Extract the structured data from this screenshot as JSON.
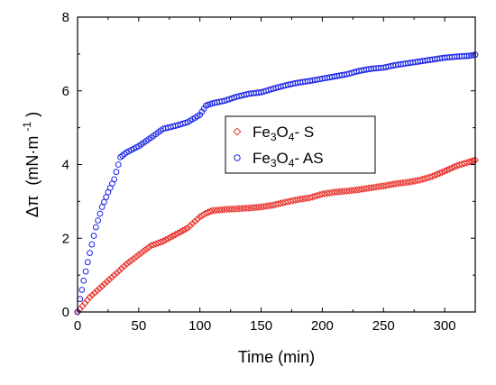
{
  "chart_data": {
    "type": "scatter",
    "title": "",
    "xlabel": "Time (min)",
    "ylabel_main": "Δπ",
    "ylabel_unit_prefix": "(mN·m",
    "ylabel_unit_exp": "-1",
    "ylabel_unit_suffix": ")",
    "xlim": [
      0,
      325
    ],
    "ylim": [
      0,
      8
    ],
    "xticks": [
      0,
      50,
      100,
      150,
      200,
      250,
      300
    ],
    "yticks": [
      0,
      2,
      4,
      6,
      8
    ],
    "grid": false,
    "legend_position": "center",
    "series": [
      {
        "name_parts": [
          "Fe",
          "3",
          "O",
          "4",
          "- S"
        ],
        "marker": "diamond",
        "color": "#e8302a",
        "points": [
          [
            0,
            0
          ],
          [
            10,
            0.4
          ],
          [
            20,
            0.7
          ],
          [
            30,
            1.0
          ],
          [
            40,
            1.3
          ],
          [
            50,
            1.55
          ],
          [
            60,
            1.8
          ],
          [
            70,
            1.92
          ],
          [
            80,
            2.1
          ],
          [
            90,
            2.28
          ],
          [
            100,
            2.58
          ],
          [
            105,
            2.68
          ],
          [
            110,
            2.75
          ],
          [
            120,
            2.78
          ],
          [
            130,
            2.8
          ],
          [
            140,
            2.82
          ],
          [
            150,
            2.85
          ],
          [
            160,
            2.9
          ],
          [
            170,
            2.98
          ],
          [
            180,
            3.05
          ],
          [
            190,
            3.1
          ],
          [
            200,
            3.2
          ],
          [
            210,
            3.25
          ],
          [
            220,
            3.28
          ],
          [
            230,
            3.32
          ],
          [
            240,
            3.37
          ],
          [
            250,
            3.42
          ],
          [
            260,
            3.48
          ],
          [
            270,
            3.52
          ],
          [
            280,
            3.58
          ],
          [
            290,
            3.68
          ],
          [
            300,
            3.82
          ],
          [
            310,
            3.97
          ],
          [
            320,
            4.07
          ],
          [
            325,
            4.12
          ]
        ]
      },
      {
        "name_parts": [
          "Fe",
          "3",
          "O",
          "4",
          "- AS"
        ],
        "marker": "circle",
        "color": "#1a22e6",
        "points": [
          [
            0,
            0
          ],
          [
            2,
            0.35
          ],
          [
            5,
            0.85
          ],
          [
            10,
            1.6
          ],
          [
            15,
            2.3
          ],
          [
            20,
            2.85
          ],
          [
            25,
            3.25
          ],
          [
            30,
            3.6
          ],
          [
            35,
            4.2
          ],
          [
            40,
            4.33
          ],
          [
            50,
            4.5
          ],
          [
            60,
            4.73
          ],
          [
            70,
            4.97
          ],
          [
            80,
            5.05
          ],
          [
            90,
            5.15
          ],
          [
            100,
            5.35
          ],
          [
            105,
            5.6
          ],
          [
            110,
            5.66
          ],
          [
            120,
            5.73
          ],
          [
            130,
            5.84
          ],
          [
            140,
            5.92
          ],
          [
            150,
            5.96
          ],
          [
            160,
            6.06
          ],
          [
            170,
            6.15
          ],
          [
            180,
            6.22
          ],
          [
            190,
            6.27
          ],
          [
            200,
            6.33
          ],
          [
            210,
            6.39
          ],
          [
            220,
            6.45
          ],
          [
            230,
            6.54
          ],
          [
            240,
            6.6
          ],
          [
            250,
            6.63
          ],
          [
            260,
            6.7
          ],
          [
            270,
            6.75
          ],
          [
            280,
            6.8
          ],
          [
            290,
            6.85
          ],
          [
            300,
            6.9
          ],
          [
            310,
            6.93
          ],
          [
            320,
            6.95
          ],
          [
            325,
            6.98
          ]
        ]
      }
    ]
  }
}
